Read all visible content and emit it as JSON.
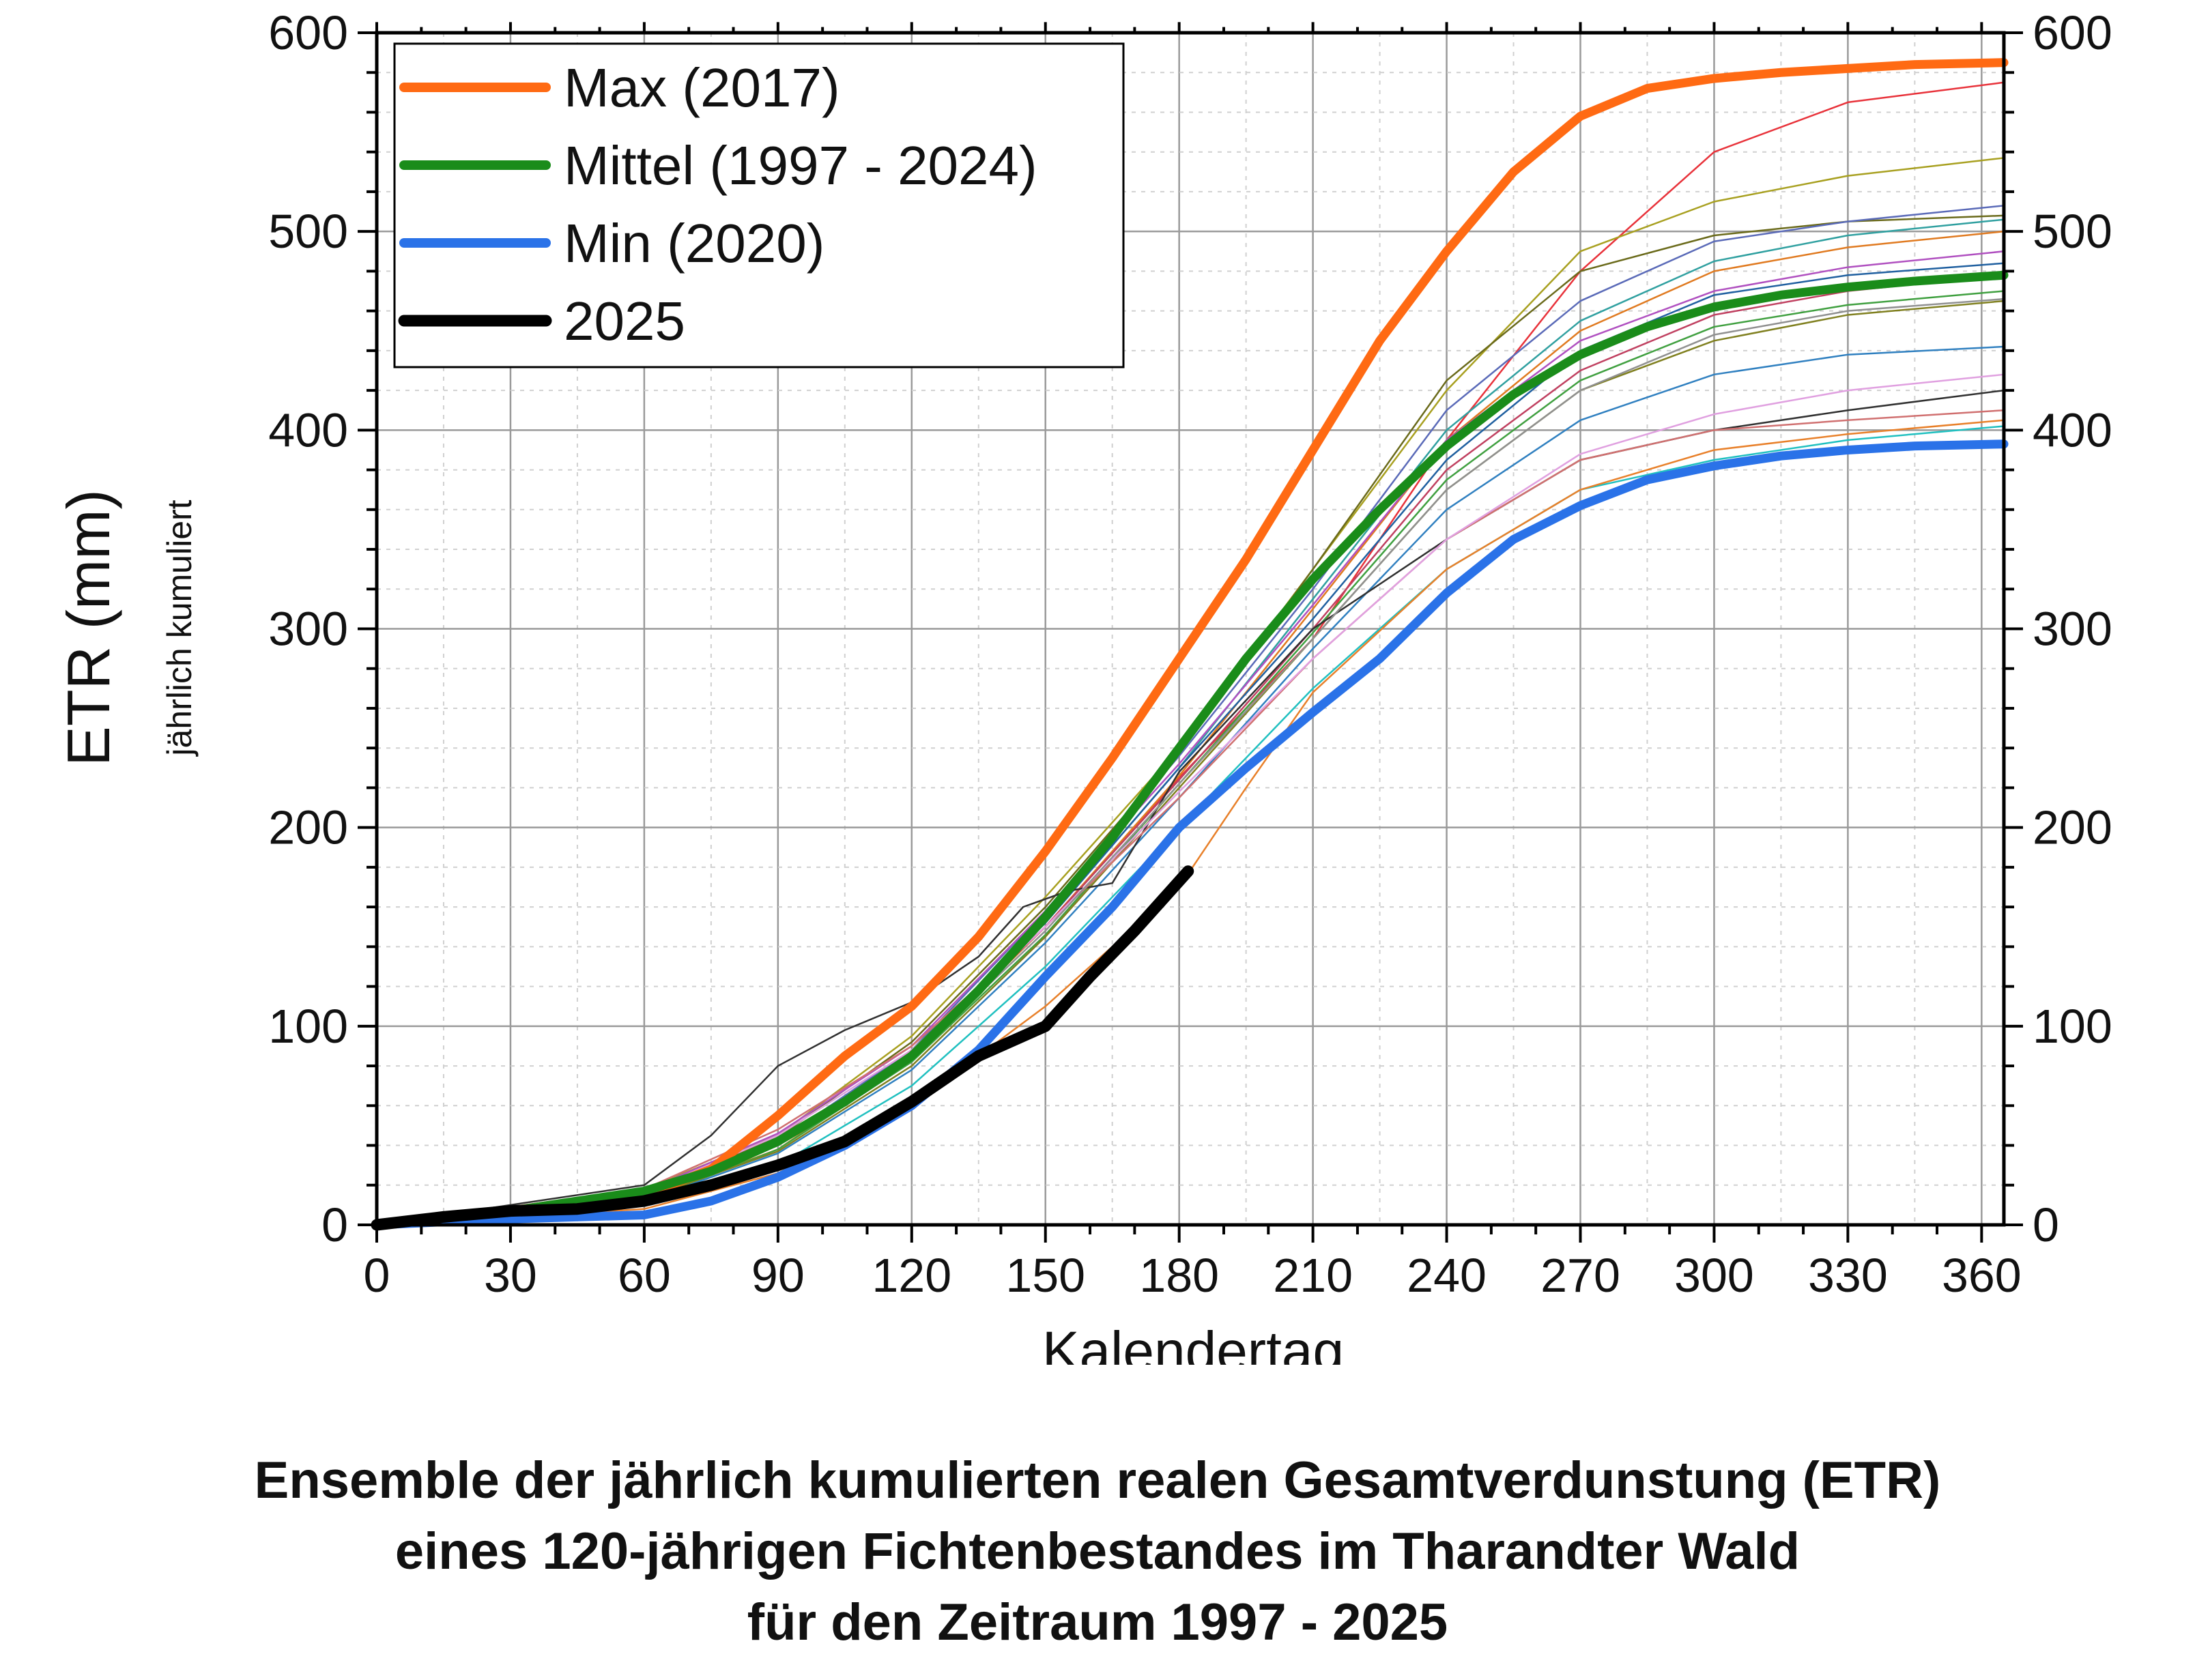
{
  "caption": {
    "line1": "Ensemble der jährlich kumulierten realen Gesamtverdunstung (ETR)",
    "line2": "eines 120-jährigen Fichtenbestandes im Tharandter Wald",
    "line3": "für den Zeitraum 1997 - 2025"
  },
  "chart_data": {
    "type": "line",
    "xlabel": "Kalendertag",
    "ylabel": "ETR (mm)",
    "ylabel_sub": "jährlich kumuliert",
    "xlim": [
      0,
      365
    ],
    "ylim": [
      0,
      600
    ],
    "x_ticks": [
      0,
      30,
      60,
      90,
      120,
      150,
      180,
      210,
      240,
      270,
      300,
      330,
      360
    ],
    "y_ticks": [
      0,
      100,
      200,
      300,
      400,
      500,
      600
    ],
    "grid": true,
    "legend_position": "top-left",
    "series": [
      {
        "name": "Max (2017)",
        "color": "#ff6a13",
        "width": "thick",
        "x": [
          0,
          30,
          60,
          75,
          90,
          105,
          120,
          135,
          150,
          165,
          180,
          195,
          210,
          225,
          240,
          255,
          270,
          285,
          300,
          315,
          330,
          345,
          365
        ],
        "y": [
          0,
          6,
          15,
          28,
          55,
          85,
          110,
          145,
          188,
          235,
          285,
          335,
          390,
          445,
          490,
          530,
          558,
          572,
          577,
          580,
          582,
          584,
          585
        ]
      },
      {
        "name": "Mittel (1997 - 2024)",
        "color": "#1a8c1a",
        "width": "thick",
        "x": [
          0,
          30,
          60,
          75,
          90,
          105,
          120,
          135,
          150,
          165,
          180,
          195,
          210,
          225,
          240,
          255,
          270,
          285,
          300,
          315,
          330,
          345,
          365
        ],
        "y": [
          0,
          7,
          17,
          27,
          42,
          62,
          85,
          118,
          155,
          195,
          240,
          285,
          325,
          360,
          392,
          418,
          438,
          452,
          462,
          468,
          472,
          475,
          478
        ]
      },
      {
        "name": "Min (2020)",
        "color": "#2a72e8",
        "width": "thick",
        "x": [
          0,
          30,
          60,
          75,
          90,
          105,
          120,
          135,
          150,
          165,
          180,
          195,
          210,
          225,
          240,
          255,
          270,
          285,
          300,
          315,
          330,
          345,
          365
        ],
        "y": [
          0,
          3,
          5,
          12,
          24,
          40,
          60,
          88,
          125,
          160,
          200,
          230,
          258,
          285,
          318,
          345,
          362,
          375,
          382,
          387,
          390,
          392,
          393
        ]
      },
      {
        "name": "2025",
        "color": "#000000",
        "width": "thick",
        "x": [
          0,
          15,
          30,
          45,
          60,
          75,
          90,
          105,
          120,
          135,
          150,
          160,
          170,
          182
        ],
        "y": [
          0,
          4,
          7,
          8,
          12,
          20,
          30,
          42,
          62,
          85,
          100,
          125,
          148,
          178
        ]
      }
    ],
    "background_years": [
      {
        "color": "#e8323a",
        "x": [
          0,
          60,
          90,
          120,
          150,
          180,
          210,
          240,
          270,
          300,
          330,
          365
        ],
        "y": [
          0,
          12,
          40,
          85,
          150,
          225,
          295,
          395,
          480,
          540,
          565,
          575
        ]
      },
      {
        "color": "#a8a020",
        "x": [
          0,
          60,
          90,
          120,
          150,
          180,
          210,
          240,
          270,
          300,
          330,
          365
        ],
        "y": [
          0,
          18,
          45,
          95,
          165,
          240,
          330,
          420,
          490,
          515,
          528,
          537
        ]
      },
      {
        "color": "#6a6a1a",
        "x": [
          0,
          60,
          90,
          120,
          150,
          180,
          210,
          240,
          270,
          300,
          330,
          365
        ],
        "y": [
          0,
          16,
          44,
          92,
          160,
          238,
          330,
          425,
          480,
          498,
          505,
          508
        ]
      },
      {
        "color": "#5a6ab8",
        "x": [
          0,
          60,
          90,
          120,
          150,
          180,
          210,
          240,
          270,
          300,
          330,
          365
        ],
        "y": [
          0,
          15,
          42,
          88,
          158,
          236,
          320,
          410,
          465,
          495,
          505,
          513
        ]
      },
      {
        "color": "#30a0a0",
        "x": [
          0,
          60,
          90,
          120,
          150,
          180,
          210,
          240,
          270,
          300,
          330,
          365
        ],
        "y": [
          0,
          14,
          40,
          86,
          152,
          230,
          315,
          400,
          455,
          485,
          498,
          506
        ]
      },
      {
        "color": "#e07a20",
        "x": [
          0,
          60,
          90,
          120,
          150,
          180,
          210,
          240,
          270,
          300,
          330,
          365
        ],
        "y": [
          0,
          13,
          38,
          84,
          150,
          226,
          310,
          395,
          450,
          480,
          492,
          500
        ]
      },
      {
        "color": "#b050c0",
        "x": [
          0,
          60,
          90,
          120,
          150,
          180,
          210,
          240,
          270,
          300,
          330,
          365
        ],
        "y": [
          0,
          17,
          46,
          90,
          158,
          232,
          312,
          395,
          445,
          470,
          482,
          490
        ]
      },
      {
        "color": "#2060a0",
        "x": [
          0,
          60,
          90,
          120,
          150,
          180,
          210,
          240,
          270,
          300,
          330,
          365
        ],
        "y": [
          0,
          14,
          40,
          85,
          152,
          230,
          305,
          385,
          440,
          468,
          478,
          484
        ]
      },
      {
        "color": "#c04060",
        "x": [
          0,
          60,
          90,
          120,
          150,
          180,
          210,
          240,
          270,
          300,
          330,
          365
        ],
        "y": [
          0,
          15,
          42,
          86,
          150,
          224,
          300,
          380,
          430,
          458,
          470,
          478
        ]
      },
      {
        "color": "#40a040",
        "x": [
          0,
          60,
          90,
          120,
          150,
          180,
          210,
          240,
          270,
          300,
          330,
          365
        ],
        "y": [
          0,
          12,
          38,
          82,
          146,
          222,
          298,
          375,
          425,
          452,
          463,
          470
        ]
      },
      {
        "color": "#808020",
        "x": [
          0,
          60,
          90,
          120,
          150,
          180,
          210,
          240,
          270,
          300,
          330,
          365
        ],
        "y": [
          0,
          13,
          37,
          80,
          145,
          220,
          295,
          370,
          420,
          445,
          458,
          465
        ]
      },
      {
        "color": "#3080c0",
        "x": [
          0,
          60,
          90,
          120,
          150,
          180,
          210,
          240,
          270,
          300,
          330,
          365
        ],
        "y": [
          0,
          12,
          36,
          78,
          142,
          215,
          290,
          360,
          405,
          428,
          438,
          442
        ]
      },
      {
        "color": "#303030",
        "x": [
          0,
          60,
          75,
          90,
          105,
          120,
          135,
          145,
          155,
          165,
          180,
          210,
          240,
          270,
          300,
          330,
          365
        ],
        "y": [
          0,
          20,
          45,
          80,
          98,
          112,
          135,
          160,
          168,
          172,
          228,
          300,
          345,
          385,
          400,
          410,
          420
        ]
      },
      {
        "color": "#d07070",
        "x": [
          0,
          60,
          90,
          120,
          150,
          180,
          210,
          240,
          270,
          300,
          330,
          365
        ],
        "y": [
          0,
          18,
          48,
          90,
          150,
          215,
          285,
          345,
          385,
          400,
          405,
          410
        ]
      },
      {
        "color": "#20c0c0",
        "x": [
          0,
          60,
          90,
          120,
          150,
          180,
          210,
          240,
          270,
          300,
          330,
          365
        ],
        "y": [
          0,
          10,
          30,
          70,
          130,
          200,
          270,
          330,
          370,
          385,
          395,
          402
        ]
      },
      {
        "color": "#e0a0e0",
        "x": [
          0,
          60,
          90,
          120,
          150,
          180,
          210,
          240,
          270,
          300,
          330,
          365
        ],
        "y": [
          0,
          16,
          45,
          88,
          150,
          218,
          285,
          345,
          388,
          408,
          420,
          428
        ]
      },
      {
        "color": "#e8802a",
        "x": [
          0,
          60,
          90,
          120,
          150,
          180,
          195,
          210,
          240,
          270,
          300,
          330,
          365
        ],
        "y": [
          0,
          8,
          26,
          60,
          110,
          170,
          220,
          268,
          330,
          370,
          390,
          398,
          405
        ]
      },
      {
        "color": "#909090",
        "x": [
          0,
          60,
          90,
          120,
          150,
          180,
          210,
          240,
          270,
          300,
          330,
          365
        ],
        "y": [
          0,
          14,
          40,
          84,
          148,
          222,
          295,
          370,
          420,
          448,
          460,
          466
        ]
      }
    ]
  }
}
